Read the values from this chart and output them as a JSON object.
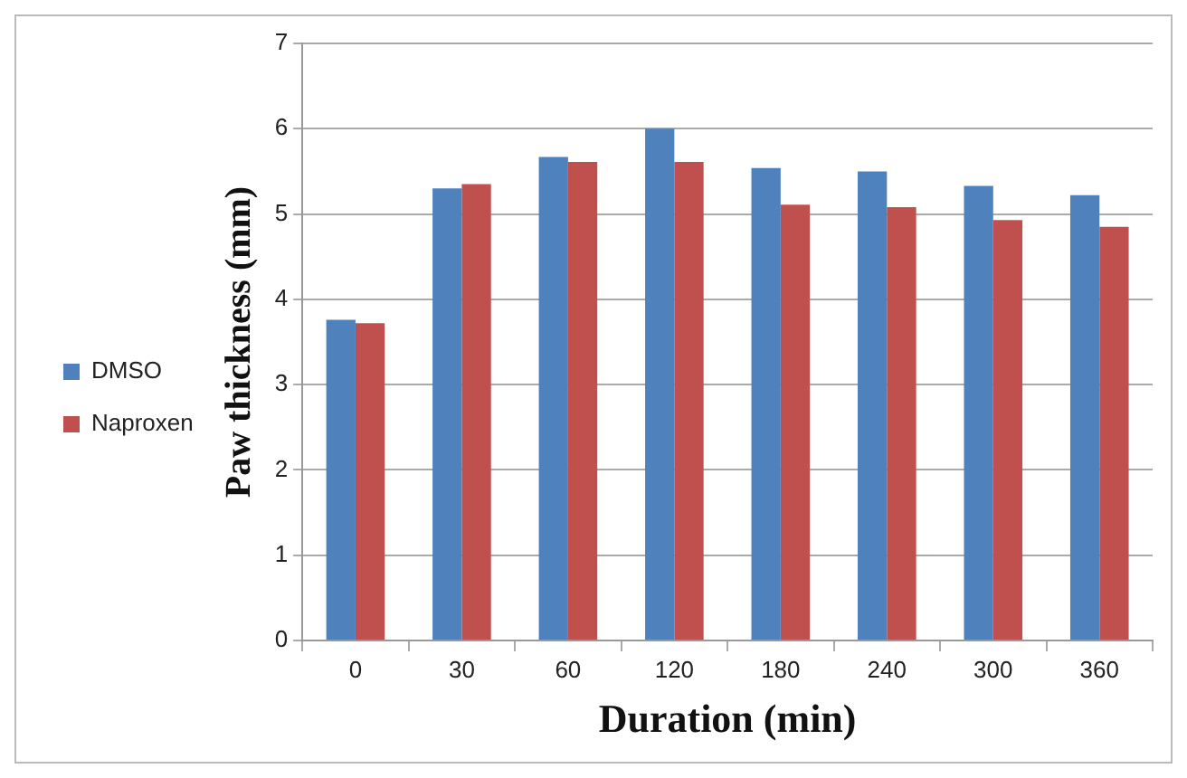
{
  "chart_data": {
    "type": "bar",
    "xlabel": "Duration (min)",
    "ylabel": "Paw thickness (mm)",
    "categories": [
      "0",
      "30",
      "60",
      "120",
      "180",
      "240",
      "300",
      "360"
    ],
    "series": [
      {
        "name": "DMSO",
        "color": "#4f81bd",
        "values": [
          3.76,
          5.3,
          5.67,
          6.0,
          5.54,
          5.5,
          5.33,
          5.22
        ]
      },
      {
        "name": "Naproxen",
        "color": "#c0504d",
        "values": [
          3.72,
          5.35,
          5.61,
          5.61,
          5.11,
          5.08,
          4.93,
          4.85
        ]
      }
    ],
    "ylim": [
      0,
      7
    ],
    "yticks": [
      0,
      1,
      2,
      3,
      4,
      5,
      6,
      7
    ],
    "grid": "y",
    "legend": "left"
  }
}
